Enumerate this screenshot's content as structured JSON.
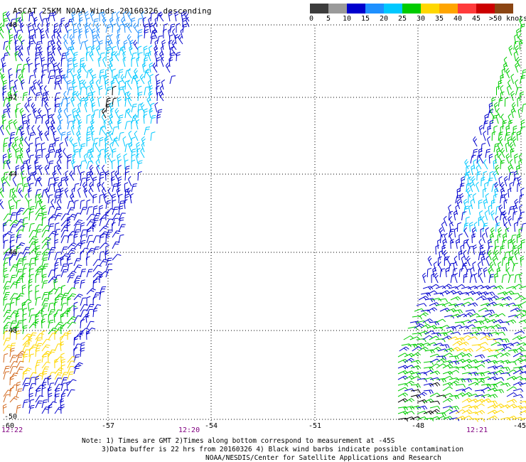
{
  "title": "ASCAT 25KM NOAA Winds 20160326 descending",
  "colorbar": {
    "colors": [
      "#3c3c3c",
      "#9a9a9a",
      "#0000cd",
      "#1e90ff",
      "#00c8ff",
      "#00cc00",
      "#ffd700",
      "#ffa500",
      "#ff3b3b",
      "#cc0000",
      "#8b4513",
      "#ff00ff",
      "#9900cc",
      "#4b0082",
      "#ffffff"
    ],
    "tick_labels": [
      "0",
      "5",
      "10",
      "15",
      "20",
      "25",
      "30",
      "35",
      "40",
      "45",
      ">50 knots"
    ]
  },
  "axes": {
    "lat_labels": [
      "-40",
      "-42",
      "-44",
      "-46",
      "-48",
      "-50"
    ],
    "lon_labels": [
      "-60",
      "-57",
      "-54",
      "-51",
      "-48",
      "-45"
    ],
    "time_labels": [
      "12:22",
      "12:20",
      "12:21"
    ]
  },
  "notes": {
    "line1": "Note: 1) Times are GMT 2)Times along bottom correspond to measurement at -45S",
    "line2": "3)Data buffer is 22 hrs from 20160326 4) Black wind barbs indicate possible contamination",
    "line3": "NOAA/NESDIS/Center for Satellite Applications and Research"
  },
  "swath_colors": {
    "dark_blue": "#0000cd",
    "blue": "#1e90ff",
    "cyan": "#00c8ff",
    "green": "#00cc00",
    "yellow": "#ffd700",
    "orange": "#d2691e",
    "black": "#000000"
  }
}
